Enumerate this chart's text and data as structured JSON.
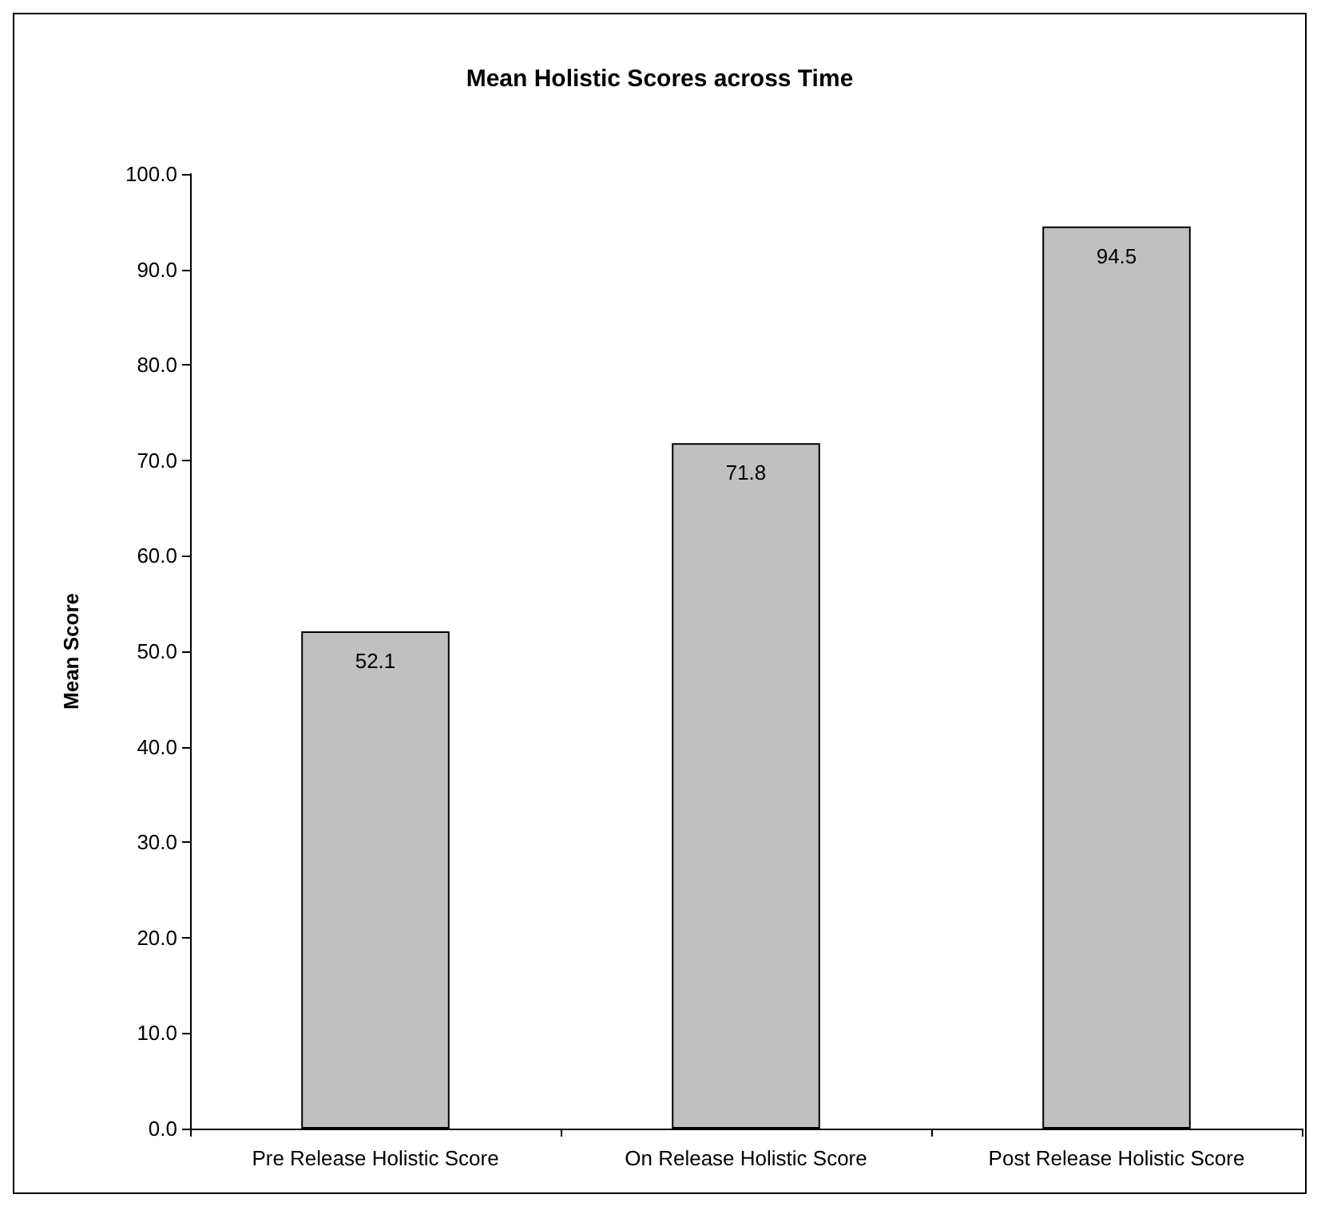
{
  "chart_data": {
    "type": "bar",
    "title": "Mean Holistic Scores across Time",
    "ylabel": "Mean Score",
    "categories": [
      "Pre Release Holistic Score",
      "On Release Holistic Score",
      "Post Release Holistic Score"
    ],
    "values": [
      52.1,
      71.8,
      94.5
    ],
    "color": "#c0c0c0",
    "data_labels": true,
    "grid": false,
    "ylim": [
      0,
      100
    ],
    "yticks": [
      {
        "value": 0,
        "label": "0.0"
      },
      {
        "value": 10,
        "label": "10.0"
      },
      {
        "value": 20,
        "label": "20.0"
      },
      {
        "value": 30,
        "label": "30.0"
      },
      {
        "value": 40,
        "label": "40.0"
      },
      {
        "value": 50,
        "label": "50.0"
      },
      {
        "value": 60,
        "label": "60.0"
      },
      {
        "value": 70,
        "label": "70.0"
      },
      {
        "value": 80,
        "label": "80.0"
      },
      {
        "value": 90,
        "label": "90.0"
      },
      {
        "value": 100,
        "label": "100.0"
      }
    ]
  }
}
